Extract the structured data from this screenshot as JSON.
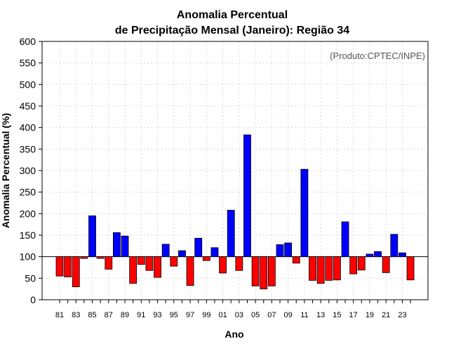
{
  "chart_data": {
    "type": "bar",
    "title_lines": [
      "Anomalia Percentual",
      "de Precipitação Mensal (Janeiro): Região 34"
    ],
    "xlabel": "Ano",
    "ylabel": "Anomalia Percentual (%)",
    "credit": "(Produto:CPTEC/INPE)",
    "ylim": [
      0,
      600
    ],
    "yticks": [
      0,
      50,
      100,
      150,
      200,
      250,
      300,
      350,
      400,
      450,
      500,
      550,
      600
    ],
    "baseline": 100,
    "grid": true,
    "legend": "none",
    "colors": {
      "above": "#0000ff",
      "below": "#ff0000",
      "edge": "#000000",
      "grid": "#d9d9d9"
    },
    "categories": [
      "81",
      "82",
      "83",
      "84",
      "85",
      "86",
      "87",
      "88",
      "89",
      "90",
      "91",
      "92",
      "93",
      "94",
      "95",
      "96",
      "97",
      "98",
      "99",
      "00",
      "01",
      "02",
      "03",
      "04",
      "05",
      "06",
      "07",
      "08",
      "09",
      "10",
      "11",
      "12",
      "13",
      "14",
      "15",
      "16",
      "17",
      "18",
      "19",
      "20",
      "21",
      "22",
      "23",
      "24"
    ],
    "xtick_labels": [
      "81",
      "83",
      "85",
      "87",
      "89",
      "91",
      "93",
      "95",
      "97",
      "99",
      "01",
      "03",
      "05",
      "07",
      "09",
      "11",
      "13",
      "15",
      "17",
      "19",
      "21",
      "23"
    ],
    "values": [
      55,
      53,
      30,
      96,
      195,
      96,
      71,
      156,
      148,
      38,
      82,
      68,
      52,
      129,
      78,
      114,
      33,
      143,
      91,
      121,
      62,
      208,
      68,
      383,
      32,
      25,
      32,
      128,
      132,
      85,
      303,
      45,
      38,
      45,
      46,
      181,
      60,
      69,
      106,
      112,
      63,
      152,
      109,
      46
    ]
  }
}
